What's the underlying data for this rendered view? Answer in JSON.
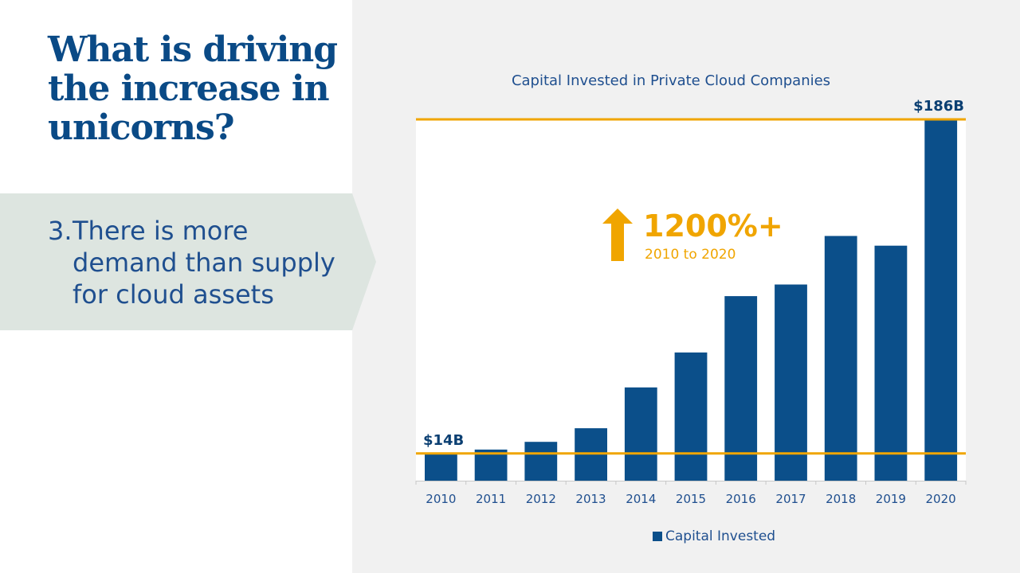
{
  "headline": {
    "lines": [
      "What is driving",
      "the increase in",
      "unicorns?"
    ]
  },
  "callout": {
    "number": "3.",
    "lines": [
      "There is more",
      "demand than supply",
      "for cloud assets"
    ]
  },
  "colors": {
    "bar": "#0b4f8a",
    "accent": "#f0a500",
    "headline": "#0a4a86",
    "callout_bg": "#dde5e0",
    "chart_bg": "#ffffff",
    "pane_bg": "#f1f1f1"
  },
  "chart_data": {
    "type": "bar",
    "title": "Capital Invested in Private Cloud Companies",
    "xlabel": "",
    "ylabel": "",
    "categories": [
      "2010",
      "2011",
      "2012",
      "2013",
      "2014",
      "2015",
      "2016",
      "2017",
      "2018",
      "2019",
      "2020"
    ],
    "series": [
      {
        "name": "Capital Invested",
        "values": [
          14,
          16,
          20,
          27,
          48,
          66,
          95,
          101,
          126,
          121,
          186
        ]
      }
    ],
    "ylim": [
      0,
      186
    ],
    "grid": false,
    "legend": "bottom",
    "reference_lines": [
      {
        "value": 14,
        "label": "$14B"
      },
      {
        "value": 186,
        "label": "$186B"
      }
    ],
    "annotation": {
      "headline": "1200%+",
      "subtext": "2010 to 2020",
      "icon": "up-arrow-icon"
    }
  }
}
